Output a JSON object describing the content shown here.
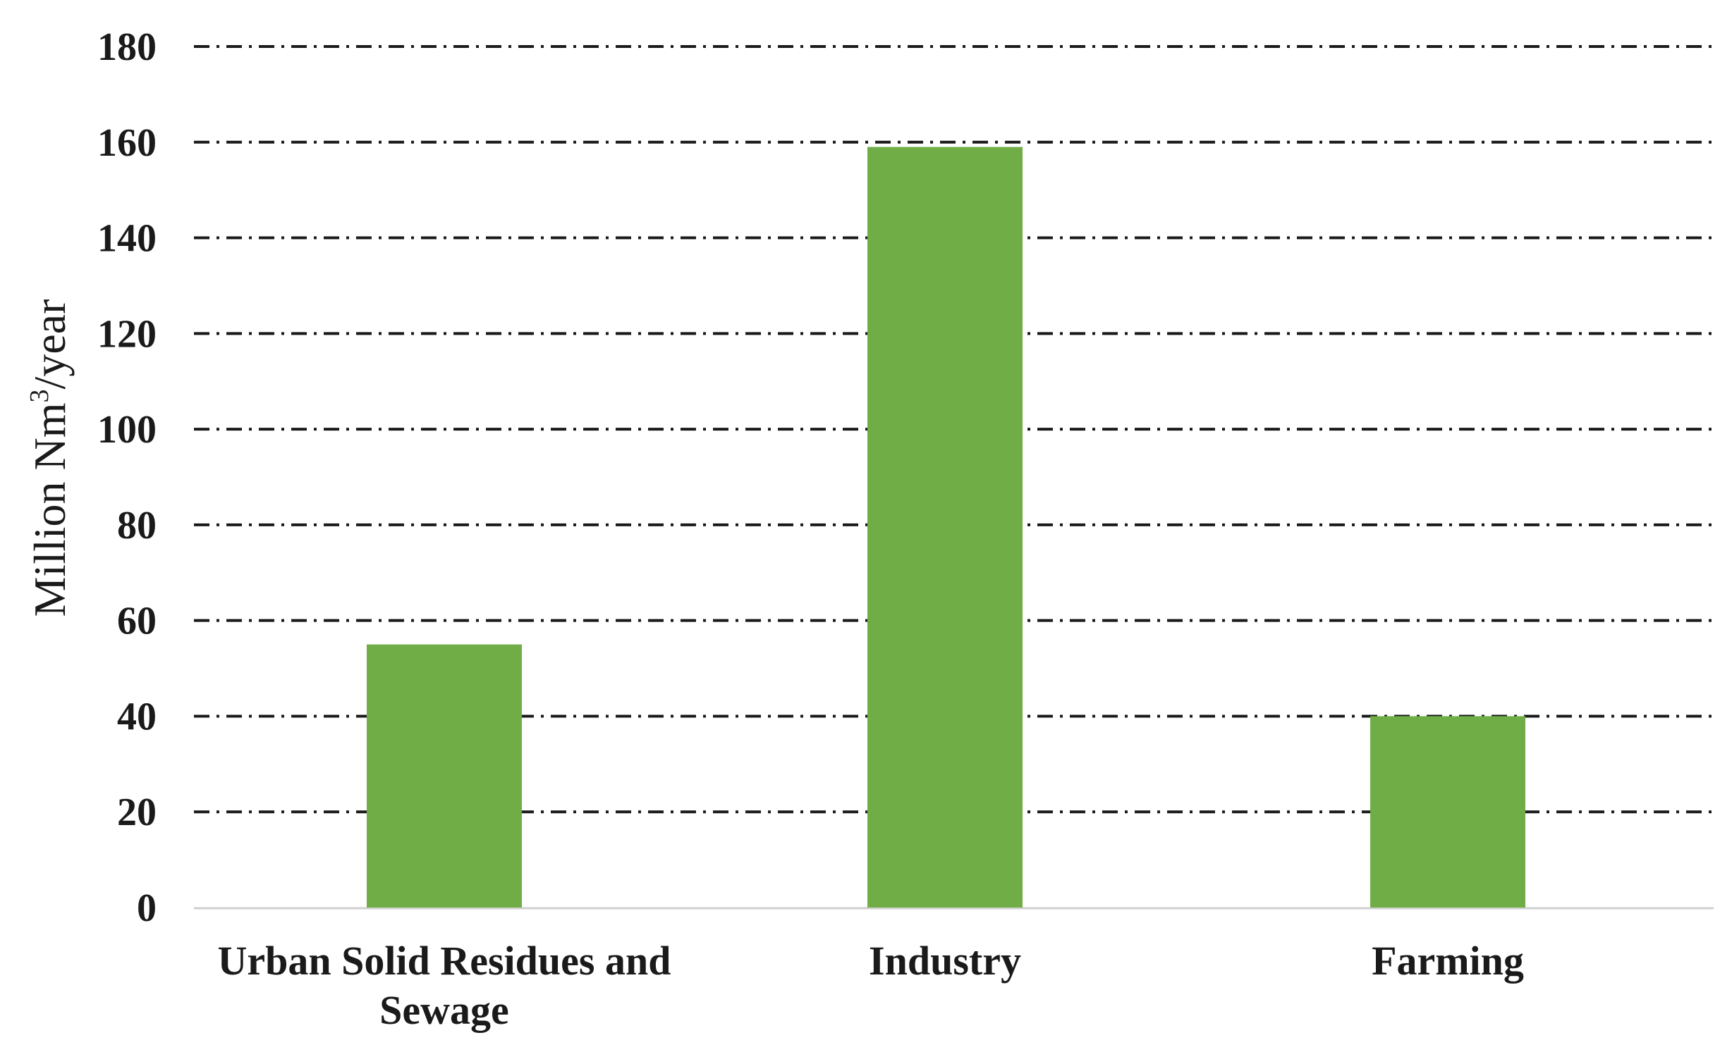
{
  "chart_data": {
    "type": "bar",
    "categories": [
      [
        "Urban Solid Residues and",
        "Sewage"
      ],
      [
        "Industry"
      ],
      [
        "Farming"
      ]
    ],
    "series": [
      {
        "values": [
          55,
          159,
          40
        ],
        "color": "#70ad47"
      }
    ],
    "ylabel_main": "Million Nm",
    "ylabel_sup": "3",
    "ylabel_tail": "/year",
    "ylim": [
      0,
      180
    ],
    "yticks": [
      0,
      20,
      40,
      60,
      80,
      100,
      120,
      140,
      160,
      180
    ],
    "grid": true,
    "grid_style": "dash-dot",
    "legend": "none"
  }
}
